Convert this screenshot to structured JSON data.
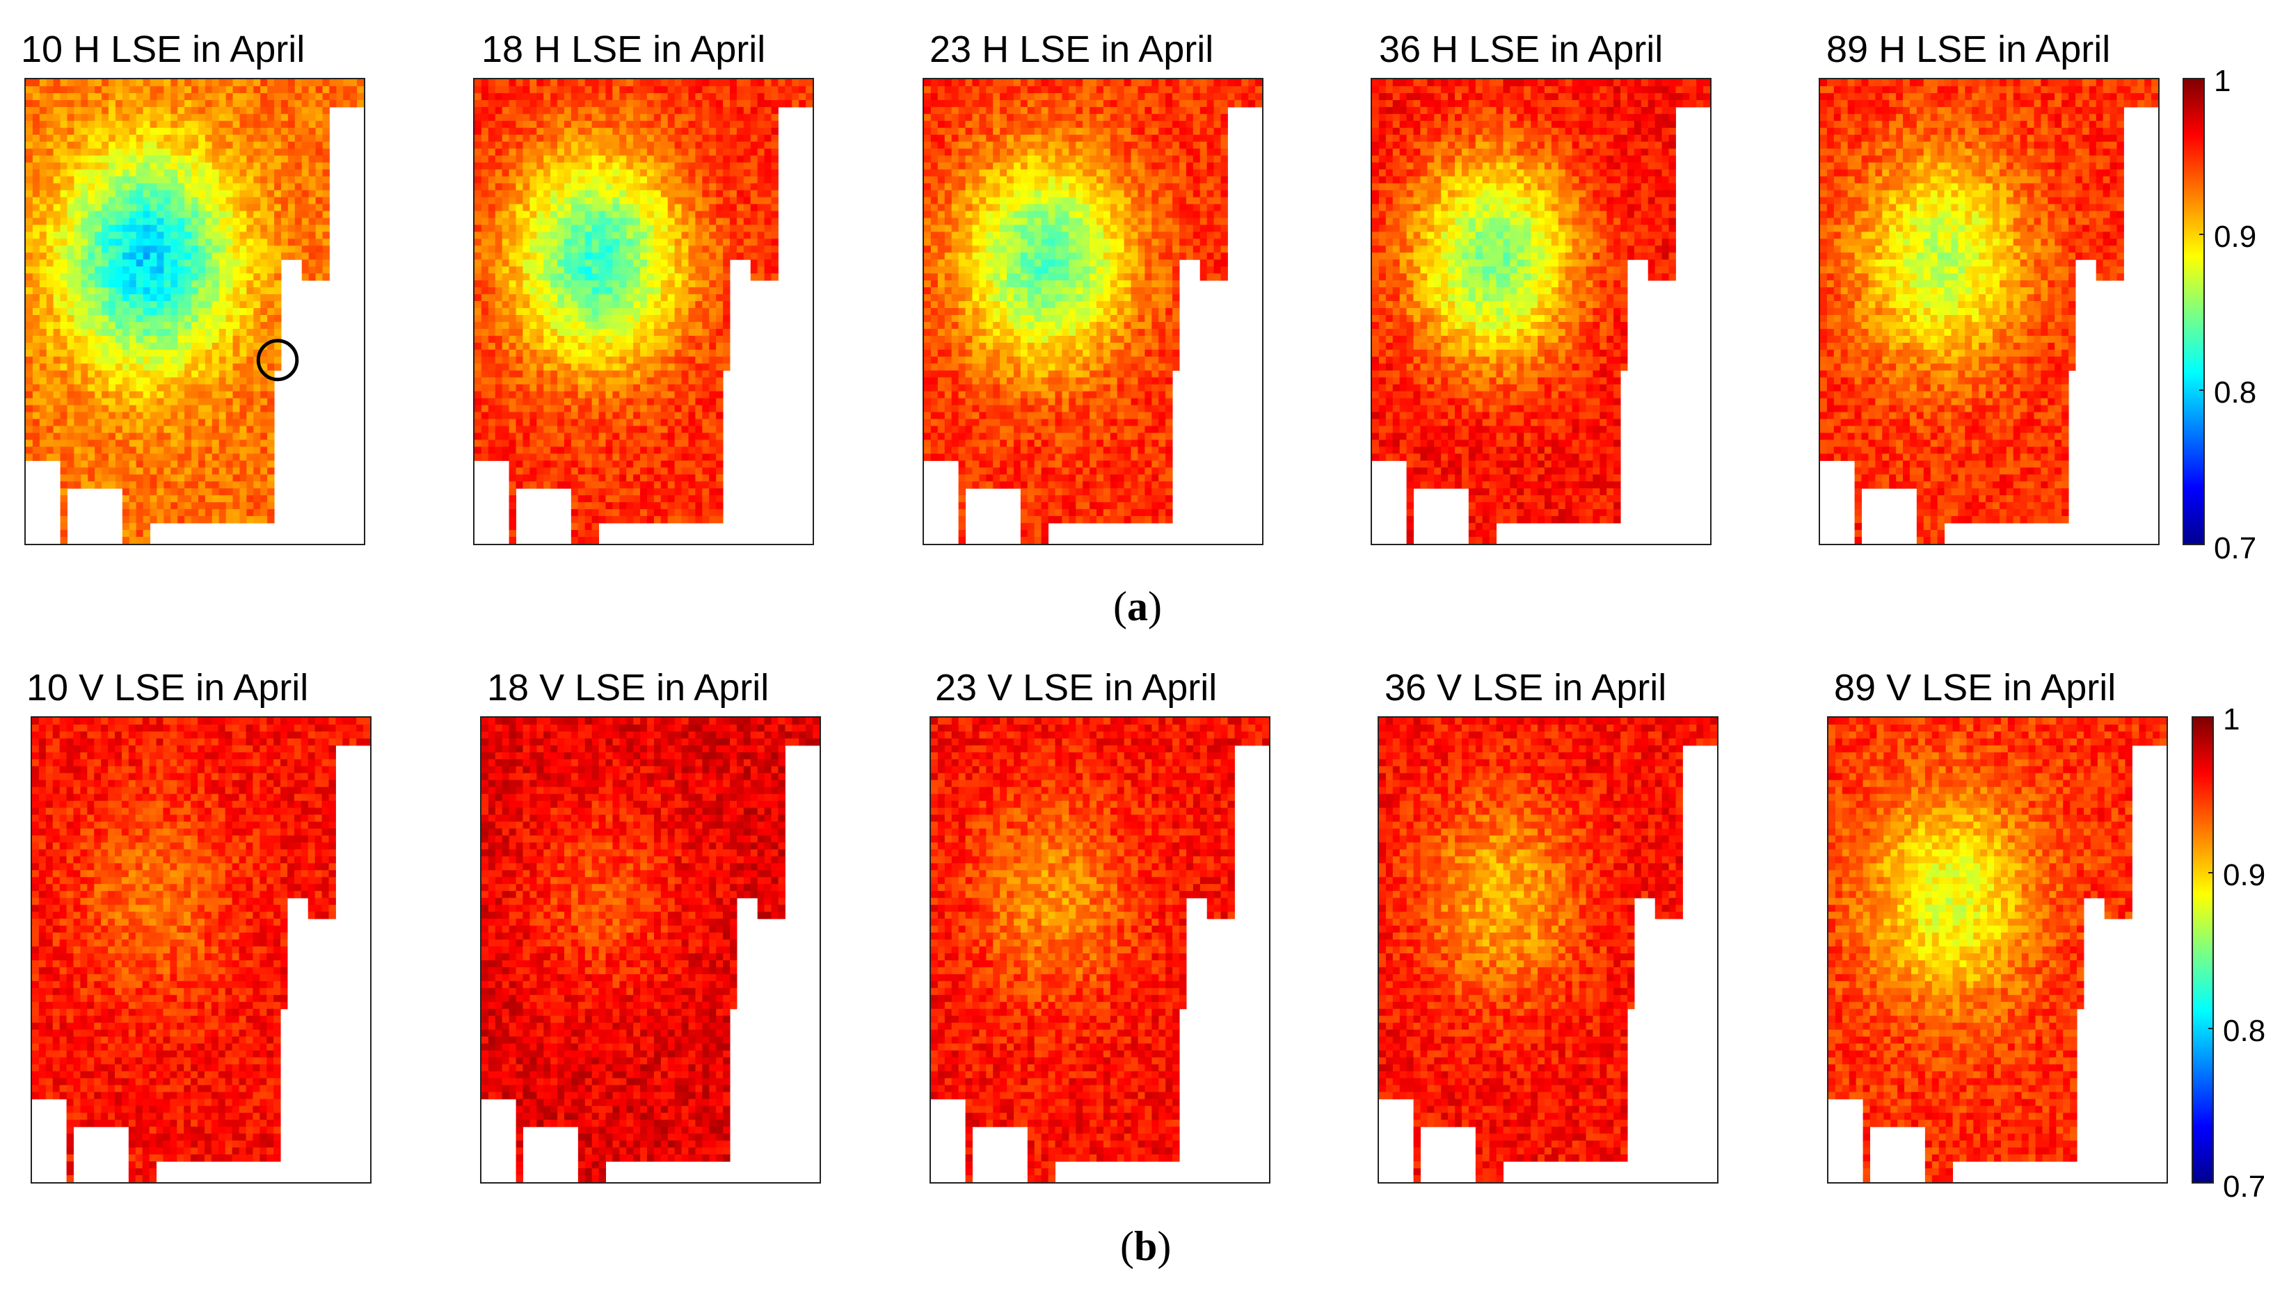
{
  "chart_data": [
    {
      "type": "heatmap",
      "row_label": "(a)",
      "row_label_letter": "a",
      "polarization": "H",
      "colorbar": {
        "min": 0.7,
        "max": 1,
        "ticks": [
          "1",
          "0.9",
          "0.8",
          "0.7"
        ],
        "colormap": "jet"
      },
      "panels": [
        {
          "title": "10 H LSE in April",
          "frequency": "10",
          "inland_level": 0.8,
          "coast_level": 0.93,
          "annotation": "circle"
        },
        {
          "title": "18 H LSE in April",
          "frequency": "18",
          "inland_level": 0.83,
          "coast_level": 0.95
        },
        {
          "title": "23 H LSE in April",
          "frequency": "23",
          "inland_level": 0.84,
          "coast_level": 0.95
        },
        {
          "title": "36 H LSE in April",
          "frequency": "36",
          "inland_level": 0.85,
          "coast_level": 0.96
        },
        {
          "title": "89 H LSE in April",
          "frequency": "89",
          "inland_level": 0.87,
          "coast_level": 0.95
        }
      ]
    },
    {
      "type": "heatmap",
      "row_label": "(b)",
      "row_label_letter": "b",
      "polarization": "V",
      "colorbar": {
        "min": 0.7,
        "max": 1,
        "ticks": [
          "1",
          "0.9",
          "0.8",
          "0.7"
        ],
        "colormap": "jet"
      },
      "panels": [
        {
          "title": "10 V LSE in April",
          "frequency": "10",
          "inland_level": 0.93,
          "coast_level": 0.96
        },
        {
          "title": "18 V LSE in April",
          "frequency": "18",
          "inland_level": 0.94,
          "coast_level": 0.97
        },
        {
          "title": "23 V LSE in April",
          "frequency": "23",
          "inland_level": 0.92,
          "coast_level": 0.96
        },
        {
          "title": "36 V LSE in April",
          "frequency": "36",
          "inland_level": 0.91,
          "coast_level": 0.96
        },
        {
          "title": "89 V LSE in April",
          "frequency": "89",
          "inland_level": 0.88,
          "coast_level": 0.95
        }
      ]
    }
  ]
}
